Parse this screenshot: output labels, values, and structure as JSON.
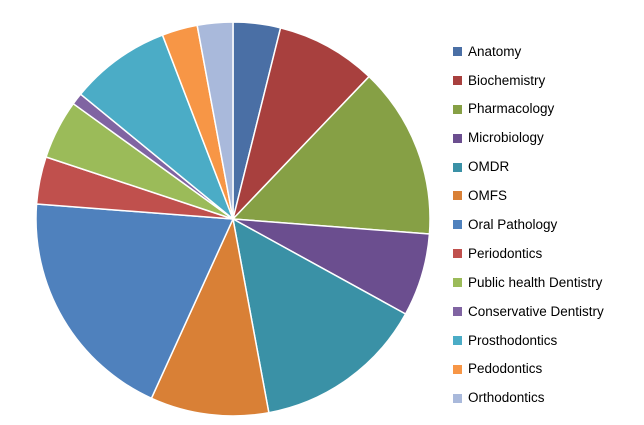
{
  "chart_data": {
    "type": "pie",
    "start_angle_deg": 0,
    "direction": "clockwise",
    "legend_position": "right",
    "series": [
      {
        "slices": [
          {
            "label": "Anatomy",
            "value": 4.0,
            "color": "#4A6FA5"
          },
          {
            "label": "Biochemistry",
            "value": 8.5,
            "color": "#A8403E"
          },
          {
            "label": "Pharmacology",
            "value": 14.5,
            "color": "#86A045"
          },
          {
            "label": "Microbiology",
            "value": 7.0,
            "color": "#6B4E8F"
          },
          {
            "label": "OMDR",
            "value": 14.5,
            "color": "#3A91A6"
          },
          {
            "label": "OMFS",
            "value": 10.0,
            "color": "#D98036"
          },
          {
            "label": "Oral Pathology",
            "value": 20.0,
            "color": "#4F81BD"
          },
          {
            "label": "Periodontics",
            "value": 4.0,
            "color": "#C0504D"
          },
          {
            "label": "Public health Dentistry",
            "value": 5.0,
            "color": "#9BBB59"
          },
          {
            "label": "Conservative Dentistry",
            "value": 1.0,
            "color": "#8064A2"
          },
          {
            "label": "Prosthodontics",
            "value": 8.5,
            "color": "#4BACC6"
          },
          {
            "label": "Pedodontics",
            "value": 3.0,
            "color": "#F79646"
          },
          {
            "label": "Orthodontics",
            "value": 3.0,
            "color": "#A9B9DB"
          }
        ]
      }
    ]
  }
}
